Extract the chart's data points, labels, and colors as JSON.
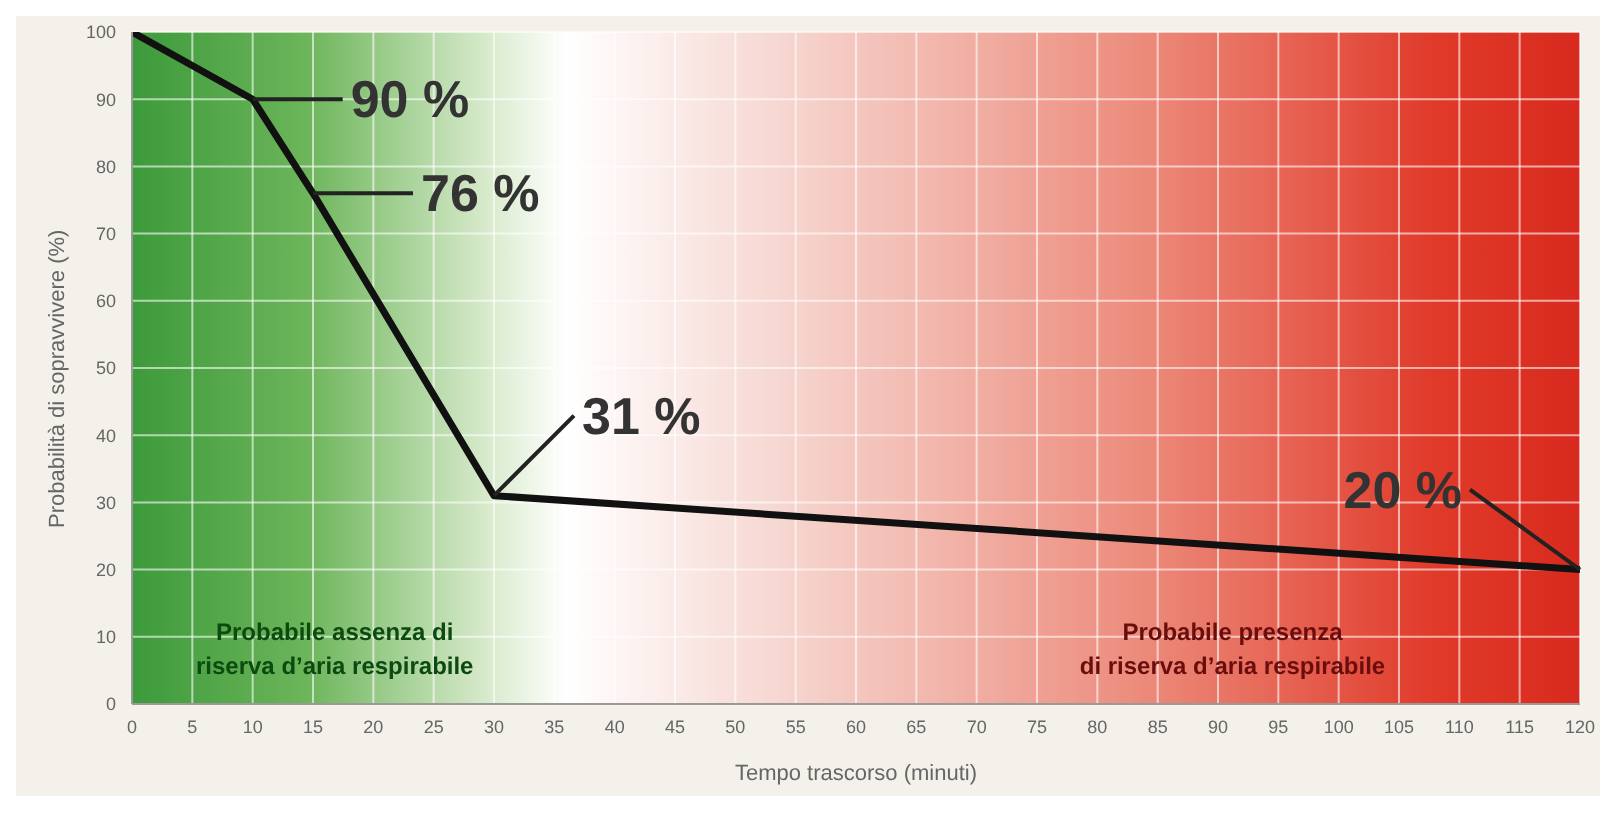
{
  "chart_data": {
    "type": "line",
    "xlabel": "Tempo trascorso (minuti)",
    "ylabel": "Probabilità di sopravvivere (%)",
    "x": [
      0,
      10,
      15,
      30,
      120
    ],
    "series": [
      {
        "color": "#111111",
        "values": [
          100,
          90,
          76,
          31,
          20
        ],
        "value_labels": [
          null,
          "90 %",
          "76 %",
          "31 %",
          "20 %"
        ]
      }
    ],
    "xlim": [
      0,
      120
    ],
    "xticks": [
      0,
      5,
      10,
      15,
      20,
      25,
      30,
      35,
      40,
      45,
      50,
      55,
      60,
      65,
      70,
      75,
      80,
      85,
      90,
      95,
      100,
      105,
      110,
      115,
      120
    ],
    "ylim": [
      0,
      100
    ],
    "yticks": [
      0,
      10,
      20,
      30,
      40,
      50,
      60,
      70,
      80,
      90,
      100
    ],
    "grid": true,
    "marker": "none",
    "line_style": "solid",
    "annotations": [
      "Probabile assenza di\nriserva d’aria respirabile",
      "Probabile presenza\ndi riserva d’aria respirabile"
    ]
  }
}
